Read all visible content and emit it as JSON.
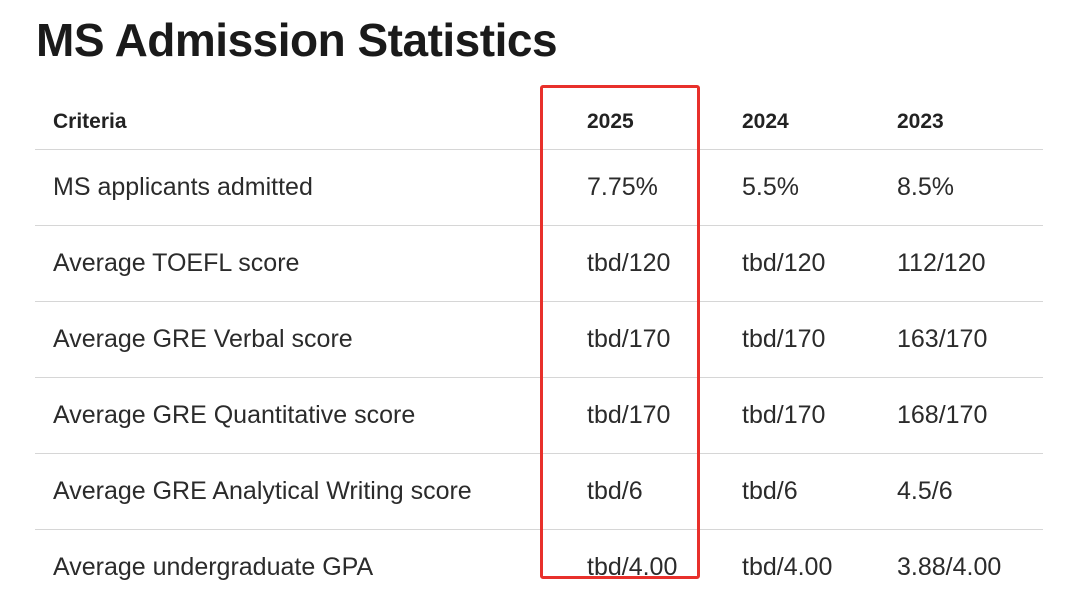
{
  "page": {
    "title": "MS Admission Statistics"
  },
  "table": {
    "headers": [
      "Criteria",
      "2025",
      "2024",
      "2023"
    ],
    "rows": [
      [
        "MS applicants admitted",
        "7.75%",
        "5.5%",
        "8.5%"
      ],
      [
        "Average TOEFL score",
        "tbd/120",
        "tbd/120",
        "112/120"
      ],
      [
        "Average GRE Verbal score",
        "tbd/170",
        "tbd/170",
        "163/170"
      ],
      [
        "Average GRE Quantitative score",
        "tbd/170",
        "tbd/170",
        "168/170"
      ],
      [
        "Average GRE Analytical Writing score",
        "tbd/6",
        "tbd/6",
        "4.5/6"
      ],
      [
        "Average undergraduate GPA",
        "tbd/4.00",
        "tbd/4.00",
        "3.88/4.00"
      ]
    ]
  },
  "highlight": {
    "color": "#e8302b",
    "column": "2025"
  }
}
